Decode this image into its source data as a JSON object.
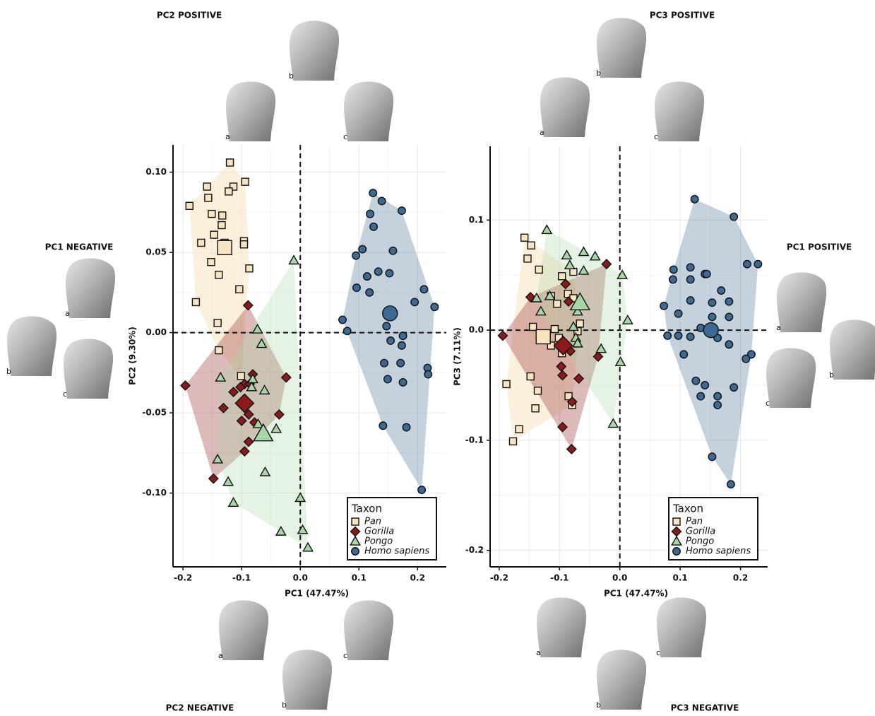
{
  "chart_data": [
    {
      "type": "scatter",
      "xlabel": "PC1 (47.47%)",
      "ylabel": "PC2 (9.30%)",
      "xlim": [
        -0.217,
        0.249
      ],
      "ylim": [
        -0.146,
        0.117
      ],
      "xticks": [
        -0.2,
        -0.1,
        {
          "value": 0,
          "label": "0.0"
        },
        0.1,
        0.2
      ],
      "yticks": [
        {
          "value": 0.1,
          "label": "0.10"
        },
        {
          "value": 0.05,
          "label": "0.05"
        },
        {
          "value": 0,
          "label": "0.00"
        },
        {
          "value": -0.05,
          "label": "-0.05"
        },
        {
          "value": -0.1,
          "label": "-0.10"
        }
      ],
      "grid": true,
      "zero_lines": true,
      "hulls": true,
      "legend": {
        "title": "Taxon",
        "position": "bottom-right"
      },
      "series": [
        {
          "name": "Pan",
          "color": "#f7e4c0",
          "marker": "square",
          "x": [
            -0.12,
            -0.159,
            -0.114,
            -0.122,
            -0.157,
            -0.094,
            -0.189,
            -0.151,
            -0.133,
            -0.134,
            -0.147,
            -0.169,
            -0.129,
            -0.096,
            -0.096,
            -0.152,
            -0.139,
            -0.087,
            -0.104,
            -0.178,
            -0.141,
            -0.139,
            -0.101
          ],
          "values": [
            0.106,
            0.091,
            0.091,
            0.088,
            0.084,
            0.094,
            0.079,
            0.074,
            0.073,
            0.067,
            0.061,
            0.056,
            0.056,
            0.057,
            0.055,
            0.044,
            0.036,
            0.04,
            0.027,
            0.019,
            0.006,
            -0.011,
            -0.027
          ],
          "mean": {
            "x": -0.129,
            "y": 0.053
          }
        },
        {
          "name": "Gorilla",
          "color": "#8b1a1a",
          "marker": "diamond",
          "x": [
            -0.089,
            -0.196,
            -0.114,
            -0.131,
            -0.095,
            -0.081,
            -0.086,
            -0.1,
            -0.088,
            -0.078,
            -0.088,
            -0.095,
            -0.024,
            -0.036,
            -0.148,
            -0.102
          ],
          "values": [
            0.017,
            -0.033,
            -0.037,
            -0.047,
            -0.032,
            -0.026,
            -0.032,
            -0.055,
            -0.051,
            -0.056,
            -0.068,
            -0.074,
            -0.028,
            -0.051,
            -0.091,
            -0.034
          ],
          "mean": {
            "x": -0.095,
            "y": -0.044
          }
        },
        {
          "name": "Pongo",
          "color": "#a9d6a6",
          "marker": "triangle",
          "x": [
            -0.011,
            -0.073,
            -0.066,
            -0.136,
            -0.081,
            -0.083,
            -0.061,
            -0.141,
            -0.123,
            -0.114,
            -0.06,
            -0.041,
            -0.033,
            0.0,
            0.004,
            0.013,
            -0.072
          ],
          "values": [
            0.045,
            0.002,
            -0.007,
            -0.028,
            -0.029,
            -0.034,
            -0.036,
            -0.079,
            -0.093,
            -0.106,
            -0.087,
            -0.06,
            -0.124,
            -0.103,
            -0.123,
            -0.134,
            -0.057
          ],
          "mean": {
            "x": -0.063,
            "y": -0.063
          }
        },
        {
          "name": "Homo sapiens",
          "color": "#3d6a93",
          "marker": "circle",
          "x": [
            0.124,
            0.139,
            0.173,
            0.119,
            0.125,
            0.106,
            0.158,
            0.095,
            0.133,
            0.152,
            0.114,
            0.096,
            0.118,
            0.211,
            0.195,
            0.229,
            0.072,
            0.08,
            0.147,
            0.175,
            0.154,
            0.173,
            0.143,
            0.171,
            0.217,
            0.218,
            0.149,
            0.175,
            0.141,
            0.181,
            0.207
          ],
          "values": [
            0.087,
            0.082,
            0.076,
            0.074,
            0.066,
            0.052,
            0.051,
            0.048,
            0.038,
            0.037,
            0.035,
            0.028,
            0.025,
            0.027,
            0.019,
            0.016,
            0.008,
            0.001,
            0.004,
            -0.002,
            -0.005,
            -0.008,
            -0.019,
            -0.019,
            -0.022,
            -0.026,
            -0.029,
            -0.031,
            -0.058,
            -0.059,
            -0.098
          ],
          "mean": {
            "x": 0.153,
            "y": 0.012
          }
        }
      ],
      "shape_views": [
        {
          "title": "PC2 POSITIVE",
          "side": "top",
          "views": [
            "a",
            "b",
            "c"
          ]
        },
        {
          "title": "PC1 NEGATIVE",
          "side": "left",
          "views": [
            "a",
            "b",
            "c"
          ]
        },
        {
          "title": "PC2 NEGATIVE",
          "side": "bottom",
          "views": [
            "a",
            "b",
            "c"
          ]
        }
      ]
    },
    {
      "type": "scatter",
      "xlabel": "PC1 (47.47%)",
      "ylabel": "PC3 (7.11%)",
      "xlim": [
        -0.215,
        0.245
      ],
      "ylim": [
        -0.215,
        0.167
      ],
      "xticks": [
        -0.2,
        -0.1,
        {
          "value": 0,
          "label": "0.0"
        },
        0.1,
        0.2
      ],
      "yticks": [
        0.1,
        {
          "value": 0,
          "label": "0.0"
        },
        -0.1,
        -0.2
      ],
      "grid": true,
      "zero_lines": true,
      "hulls": true,
      "legend": {
        "title": "Taxon",
        "position": "bottom-right"
      },
      "series": [
        {
          "name": "Pan",
          "color": "#f7e4c0",
          "marker": "square",
          "x": [
            -0.158,
            -0.147,
            -0.153,
            -0.134,
            -0.096,
            -0.077,
            -0.114,
            -0.086,
            -0.077,
            -0.104,
            -0.144,
            -0.108,
            -0.07,
            -0.101,
            -0.066,
            -0.114,
            -0.096,
            -0.188,
            -0.148,
            -0.136,
            -0.085,
            -0.14,
            -0.079,
            -0.167,
            -0.177
          ],
          "values": [
            0.084,
            0.077,
            0.065,
            0.055,
            0.049,
            0.053,
            0.031,
            0.033,
            0.029,
            0.024,
            0.003,
            0.001,
            -0.001,
            -0.007,
            0.006,
            -0.014,
            -0.021,
            -0.049,
            -0.042,
            -0.055,
            -0.06,
            -0.071,
            -0.068,
            -0.09,
            -0.101
          ],
          "mean": {
            "x": -0.127,
            "y": -0.006
          }
        },
        {
          "name": "Gorilla",
          "color": "#8b1a1a",
          "marker": "diamond",
          "x": [
            -0.194,
            -0.148,
            -0.09,
            -0.085,
            -0.022,
            -0.097,
            -0.095,
            -0.068,
            -0.036,
            -0.079,
            -0.095,
            -0.08,
            -0.082
          ],
          "values": [
            -0.005,
            0.03,
            0.042,
            0.026,
            0.06,
            -0.033,
            -0.041,
            -0.044,
            -0.024,
            -0.065,
            -0.088,
            -0.108,
            -0.019
          ],
          "mean": {
            "x": -0.094,
            "y": -0.014
          }
        },
        {
          "name": "Pongo",
          "color": "#a9d6a6",
          "marker": "triangle",
          "x": [
            -0.121,
            -0.088,
            -0.083,
            -0.06,
            -0.041,
            -0.06,
            -0.138,
            -0.131,
            -0.116,
            -0.07,
            -0.077,
            -0.073,
            -0.07,
            -0.031,
            0.004,
            0.013,
            0.001,
            -0.011
          ],
          "values": [
            0.091,
            0.068,
            0.059,
            0.071,
            0.067,
            0.054,
            0.029,
            0.017,
            0.031,
            0.017,
            0.003,
            -0.007,
            -0.012,
            -0.017,
            0.05,
            0.009,
            -0.029,
            -0.085
          ],
          "mean": {
            "x": -0.066,
            "y": 0.025
          }
        },
        {
          "name": "Homo sapiens",
          "color": "#3d6a93",
          "marker": "circle",
          "x": [
            0.124,
            0.189,
            0.211,
            0.229,
            0.089,
            0.117,
            0.141,
            0.144,
            0.088,
            0.117,
            0.168,
            0.181,
            0.073,
            0.153,
            0.117,
            0.097,
            0.153,
            0.181,
            0.079,
            0.097,
            0.117,
            0.162,
            0.134,
            0.181,
            0.106,
            0.218,
            0.209,
            0.126,
            0.141,
            0.189,
            0.134,
            0.162,
            0.162,
            0.153,
            0.184
          ],
          "values": [
            0.119,
            0.103,
            0.06,
            0.06,
            0.055,
            0.057,
            0.051,
            0.051,
            0.046,
            0.046,
            0.036,
            0.026,
            0.022,
            0.025,
            0.027,
            0.015,
            0.012,
            0.012,
            -0.005,
            -0.005,
            -0.006,
            -0.007,
            0.002,
            -0.013,
            -0.022,
            -0.022,
            -0.026,
            -0.046,
            -0.05,
            -0.052,
            -0.06,
            -0.06,
            -0.068,
            -0.115,
            -0.14
          ],
          "mean": {
            "x": 0.151,
            "y": 0.0
          }
        }
      ],
      "shape_views": [
        {
          "title": "PC3 POSITIVE",
          "side": "top",
          "views": [
            "a",
            "b",
            "c"
          ]
        },
        {
          "title": "PC1 POSITIVE",
          "side": "right",
          "views": [
            "a",
            "b",
            "c"
          ]
        },
        {
          "title": "PC3 NEGATIVE",
          "side": "bottom",
          "views": [
            "a",
            "b",
            "c"
          ]
        }
      ]
    }
  ]
}
